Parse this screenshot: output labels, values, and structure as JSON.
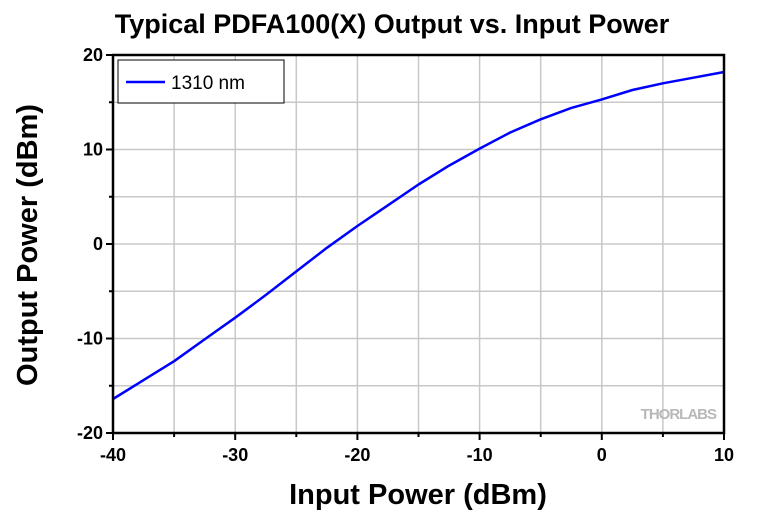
{
  "chart_data": {
    "type": "line",
    "title": "Typical PDFA100(X) Output vs. Input Power",
    "xlabel": "Input Power (dBm)",
    "ylabel": "Output Power (dBm)",
    "xlim": [
      -40,
      10
    ],
    "ylim": [
      -20,
      20
    ],
    "xticks": [
      -40,
      -30,
      -20,
      -10,
      0,
      10
    ],
    "yticks": [
      -20,
      -10,
      0,
      10,
      20
    ],
    "grid": true,
    "grid_step": 5,
    "legend": "top-left",
    "watermark": "THORLABS",
    "series": [
      {
        "name": "1310 nm",
        "color": "#0000ff",
        "x": [
          -40,
          -37.5,
          -35,
          -32.5,
          -30,
          -27.5,
          -25,
          -22.5,
          -20,
          -17.5,
          -15,
          -12.5,
          -10,
          -7.5,
          -5,
          -2.5,
          0,
          2.5,
          5,
          7.5,
          10
        ],
        "y": [
          -16.4,
          -14.4,
          -12.4,
          -10.1,
          -7.8,
          -5.4,
          -2.9,
          -0.4,
          1.9,
          4.1,
          6.3,
          8.3,
          10.1,
          11.8,
          13.2,
          14.4,
          15.3,
          16.3,
          17.0,
          17.6,
          18.2
        ]
      }
    ]
  }
}
